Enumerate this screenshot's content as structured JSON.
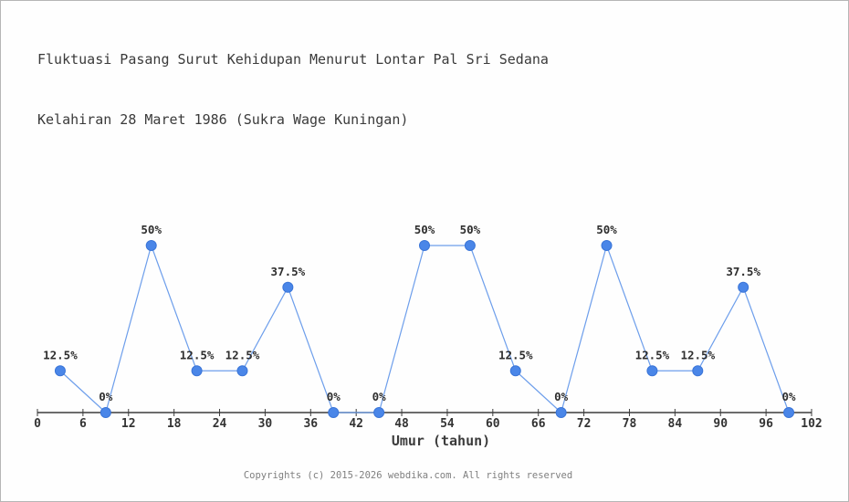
{
  "window": {
    "background": "#fefefe",
    "border_color": "#b6b6b6"
  },
  "title": {
    "line1": "Fluktuasi Pasang Surut Kehidupan Menurut Lontar Pal Sri Sedana",
    "line2": "Kelahiran 28 Maret 1986 (Sukra Wage Kuningan)"
  },
  "chart_data": {
    "type": "line",
    "x": [
      3,
      9,
      15,
      21,
      27,
      33,
      39,
      45,
      51,
      57,
      63,
      69,
      75,
      81,
      87,
      93,
      99
    ],
    "values": [
      12.5,
      0,
      50,
      12.5,
      12.5,
      37.5,
      0,
      0,
      50,
      50,
      12.5,
      0,
      50,
      12.5,
      12.5,
      37.5,
      0
    ],
    "point_labels": [
      "12.5%",
      "0%",
      "50%",
      "12.5%",
      "12.5%",
      "37.5%",
      "0%",
      "0%",
      "50%",
      "50%",
      "12.5%",
      "0%",
      "50%",
      "12.5%",
      "12.5%",
      "37.5%",
      "0%"
    ],
    "title": "Fluktuasi Pasang Surut Kehidupan Menurut Lontar Pal Sri Sedana Kelahiran 28 Maret 1986 (Sukra Wage Kuningan)",
    "xlabel": "Umur (tahun)",
    "ylabel": "",
    "x_ticks": [
      0,
      6,
      12,
      18,
      24,
      30,
      36,
      42,
      48,
      54,
      60,
      66,
      72,
      78,
      84,
      90,
      96,
      102
    ],
    "xlim": [
      0,
      102
    ],
    "ylim": [
      0,
      100
    ],
    "grid": false,
    "legend": null,
    "colors": {
      "line": "#6d9eeb",
      "marker_fill": "#4a86e8",
      "marker_stroke": "#3a75d8",
      "axis": "#3c3c3c",
      "tick_label": "#333333",
      "point_label": "#2e2e2e"
    }
  },
  "footer": {
    "copyright": "Copyrights (c) 2015-2026 webdika.com. All rights reserved"
  }
}
